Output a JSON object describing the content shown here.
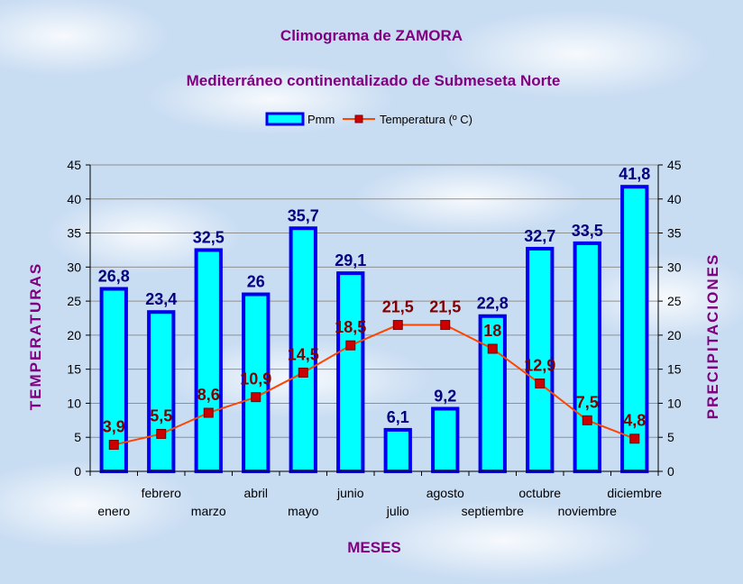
{
  "chart_data": {
    "type": "bar",
    "title": "Climograma de ZAMORA",
    "subtitle": "Mediterráneo continentalizado de Submeseta Norte",
    "xlabel": "MESES",
    "ylabel_left": "TEMPERATURAS",
    "ylabel_right": "PRECIPITACIONES",
    "ylim": [
      0,
      45
    ],
    "yticks": [
      0,
      5,
      10,
      15,
      20,
      25,
      30,
      35,
      40,
      45
    ],
    "categories": [
      "enero",
      "febrero",
      "marzo",
      "abril",
      "mayo",
      "junio",
      "julio",
      "agosto",
      "septiembre",
      "octubre",
      "noviembre",
      "diciembre"
    ],
    "legend_position": "top",
    "grid": "horizontal",
    "series": [
      {
        "name": "Pmm",
        "type": "bar",
        "values": [
          26.8,
          23.4,
          32.5,
          26,
          35.7,
          29.1,
          6.1,
          9.2,
          22.8,
          32.7,
          33.5,
          41.8
        ],
        "labels": [
          "26,8",
          "23,4",
          "32,5",
          "26",
          "35,7",
          "29,1",
          "6,1",
          "9,2",
          "22,8",
          "32,7",
          "33,5",
          "41,8"
        ],
        "fill": "#00ffff",
        "stroke": "#0000ee",
        "label_color": "#000080"
      },
      {
        "name": "Temperatura (º C)",
        "type": "line",
        "values": [
          3.9,
          5.5,
          8.6,
          10.9,
          14.5,
          18.5,
          21.5,
          21.5,
          18,
          12.9,
          7.5,
          4.8
        ],
        "labels": [
          "3,9",
          "5,5",
          "8,6",
          "10,9",
          "14,5",
          "18,5",
          "21,5",
          "21,5",
          "18",
          "12,9",
          "7,5",
          "4,8"
        ],
        "line_color": "#ff4500",
        "marker_color": "#cc0000",
        "label_color": "#800000"
      }
    ],
    "colors": {
      "title": "#800080",
      "axis": "#000000",
      "grid": "#909090"
    }
  }
}
